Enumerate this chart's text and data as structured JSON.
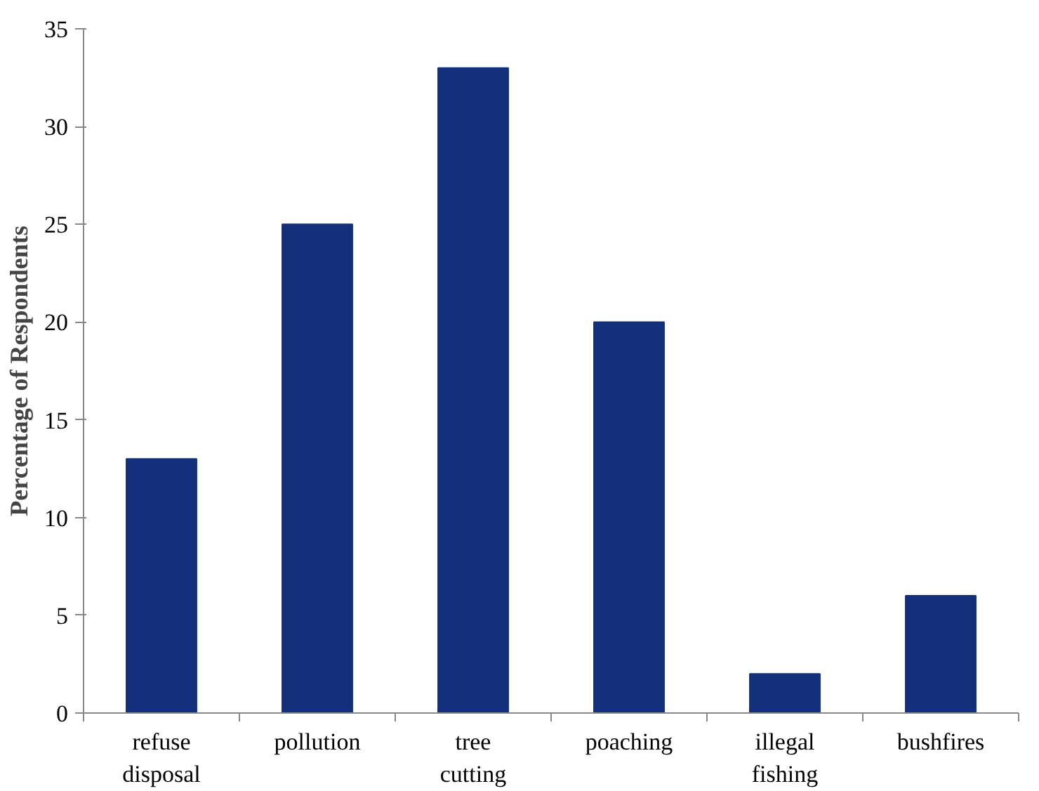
{
  "chart_data": {
    "type": "bar",
    "ylabel": "Percentage of Respondents",
    "categories": [
      "refuse\ndisposal",
      "pollution",
      "tree\ncutting",
      "poaching",
      "illegal\nfishing",
      "bushfires"
    ],
    "values": [
      13,
      25,
      33,
      20,
      2,
      6
    ],
    "color": "#14307a",
    "ylim": [
      0,
      35
    ],
    "yticks": [
      0,
      5,
      10,
      15,
      20,
      25,
      30,
      35
    ],
    "grid": false
  }
}
